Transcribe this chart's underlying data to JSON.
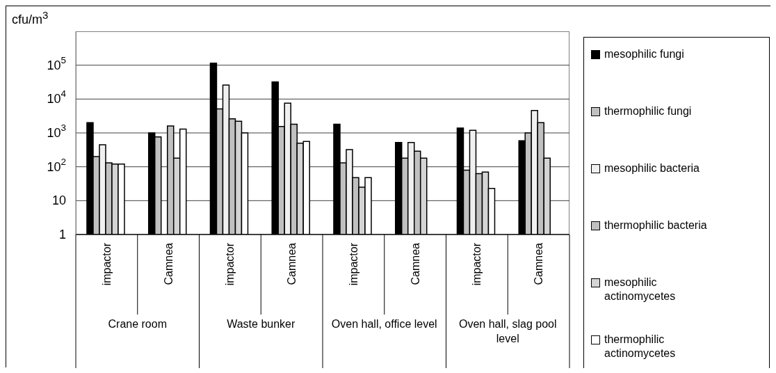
{
  "chart_data": {
    "type": "bar",
    "ylabel": "cfu/m$^{3}$",
    "categories": [
      "impactor",
      "Camnea",
      "impactor",
      "Camnea",
      "impactor",
      "Camnea",
      "impactor",
      "Camnea"
    ],
    "annotations": [
      "Crane room",
      "Waste bunker",
      "Oven hall, office level",
      "Oven hall, slag pool level"
    ],
    "series": [
      {
        "name": "mesophilic fungi",
        "color": "#000000",
        "values": [
          2000,
          1000,
          115000,
          32000,
          1800,
          520,
          1400,
          590
        ]
      },
      {
        "name": "thermophilic fungi",
        "color": "#c0c0c0",
        "values": [
          200,
          760,
          5100,
          1550,
          130,
          180,
          80,
          1000
        ]
      },
      {
        "name": "mesophilic bacteria",
        "color": "#f0f0f0",
        "values": [
          450,
          null,
          26000,
          7600,
          320,
          520,
          1200,
          4600
        ]
      },
      {
        "name": "thermophilic bacteria",
        "color": "#c0c0c0",
        "values": [
          130,
          1600,
          2600,
          1800,
          48,
          290,
          63,
          2000
        ]
      },
      {
        "name": "mesophilic actinomycetes",
        "color": "#d4d4d4",
        "values": [
          120,
          180,
          2200,
          500,
          25,
          180,
          70,
          180
        ]
      },
      {
        "name": "thermophilic actinomycetes",
        "color": "#ffffff",
        "values": [
          120,
          1300,
          1000,
          560,
          48,
          null,
          23,
          null
        ]
      }
    ],
    "log": true,
    "ylim": [
      1,
      1000000
    ],
    "yticks": [
      1,
      10,
      {
        "value": 100,
        "label": "10$^{2}$"
      },
      {
        "value": 1000,
        "label": "10$^{3}$"
      },
      {
        "value": 10000,
        "label": "10$^{4}$"
      },
      {
        "value": 100000,
        "label": "10$^{5}$"
      }
    ],
    "grid": "y",
    "legend": "right"
  }
}
